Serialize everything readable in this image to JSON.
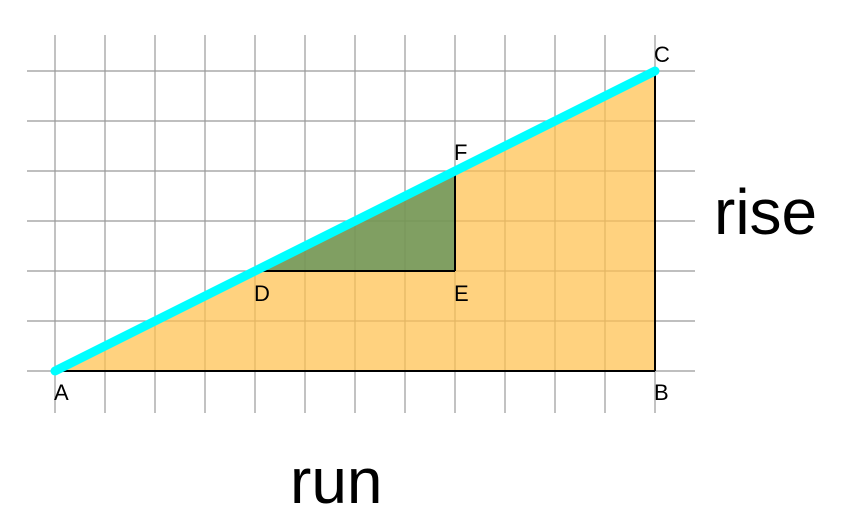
{
  "labels": {
    "rise": "rise",
    "run": "run"
  },
  "points": {
    "A": "A",
    "B": "B",
    "C": "C",
    "D": "D",
    "E": "E",
    "F": "F"
  },
  "colors": {
    "grid": "#999999",
    "large_triangle_fill": "#ffd280",
    "small_triangle_fill": "#7ca67a",
    "hypotenuse": "#00ffff",
    "edges": "#000000"
  }
}
